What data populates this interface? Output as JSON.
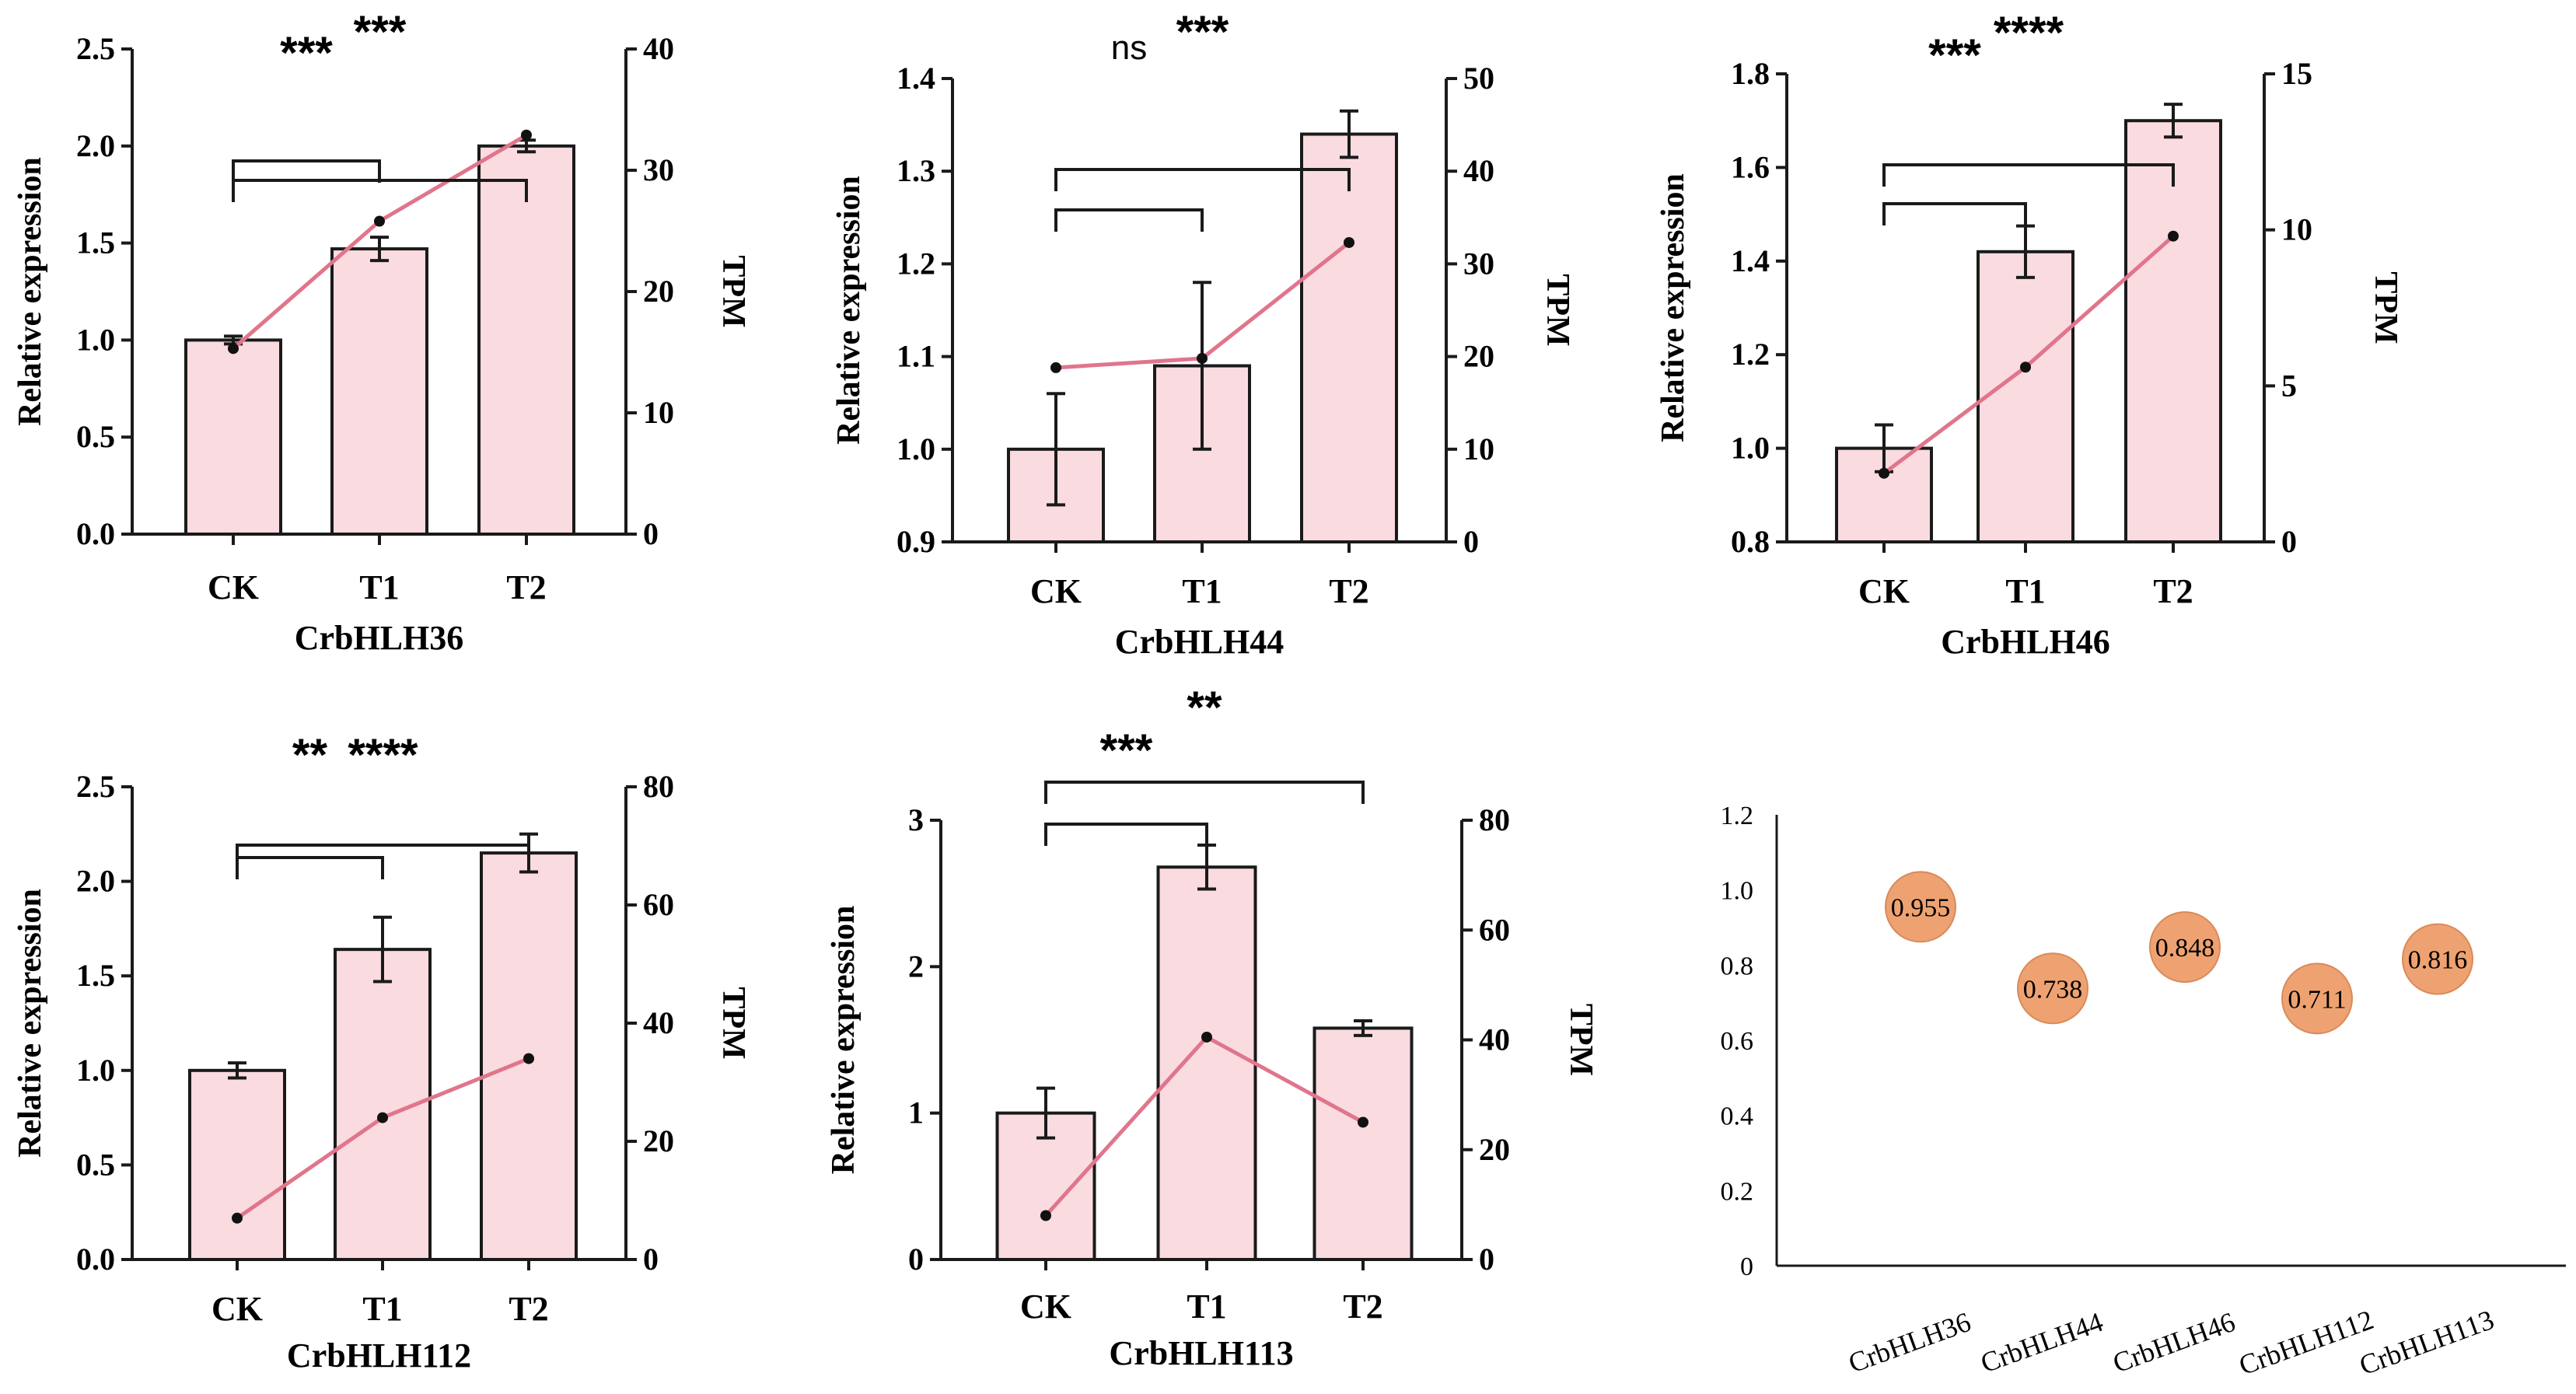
{
  "colors": {
    "bar_fill": "#f9dbe0",
    "bar_stroke": "#1a1a1a",
    "line": "#e0758c",
    "bubble": "#efa271",
    "bubble_stroke": "#d98a5a",
    "axis": "#1a1a1a"
  },
  "chart_data": [
    {
      "type": "bar+line",
      "title": "CrbHLH36",
      "categories": [
        "CK",
        "T1",
        "T2"
      ],
      "ylabel": "Relative expression",
      "y2label": "TPM",
      "ylim": [
        0,
        2.5
      ],
      "yticks": [
        0.0,
        0.5,
        1.0,
        1.5,
        2.0,
        2.5
      ],
      "ytick_labels": [
        "0.0",
        "0.5",
        "1.0",
        "1.5",
        "2.0",
        "2.5"
      ],
      "y2lim": [
        0,
        40
      ],
      "y2ticks": [
        0,
        10,
        20,
        30,
        40
      ],
      "y2tick_labels": [
        "0",
        "10",
        "20",
        "30",
        "40"
      ],
      "bars": [
        1.0,
        1.47,
        2.0
      ],
      "errors": [
        0.02,
        0.06,
        0.03
      ],
      "tpm": [
        15.3,
        25.8,
        32.9
      ],
      "significance": [
        {
          "from": 0,
          "to": 1,
          "label": "***"
        },
        {
          "from": 0,
          "to": 2,
          "label": "***"
        }
      ]
    },
    {
      "type": "bar+line",
      "title": "CrbHLH44",
      "categories": [
        "CK",
        "T1",
        "T2"
      ],
      "ylabel": "Relative expression",
      "y2label": "TPM",
      "ylim": [
        0.9,
        1.4
      ],
      "yticks": [
        0.9,
        1.0,
        1.1,
        1.2,
        1.3,
        1.4
      ],
      "ytick_labels": [
        "0.9",
        "1.0",
        "1.1",
        "1.2",
        "1.3",
        "1.4"
      ],
      "y2lim": [
        0,
        50
      ],
      "y2ticks": [
        0,
        10,
        20,
        30,
        40,
        50
      ],
      "y2tick_labels": [
        "0",
        "10",
        "20",
        "30",
        "40",
        "50"
      ],
      "bars": [
        1.0,
        1.09,
        1.34
      ],
      "errors": [
        0.06,
        0.09,
        0.025
      ],
      "tpm": [
        18.8,
        19.8,
        32.3
      ],
      "significance": [
        {
          "from": 0,
          "to": 1,
          "label": "ns"
        },
        {
          "from": 0,
          "to": 2,
          "label": "***"
        }
      ]
    },
    {
      "type": "bar+line",
      "title": "CrbHLH46",
      "categories": [
        "CK",
        "T1",
        "T2"
      ],
      "ylabel": "Relative expression",
      "y2label": "TPM",
      "ylim": [
        0.8,
        1.8
      ],
      "yticks": [
        0.8,
        1.0,
        1.2,
        1.4,
        1.6,
        1.8
      ],
      "ytick_labels": [
        "0.8",
        "1.0",
        "1.2",
        "1.4",
        "1.6",
        "1.8"
      ],
      "y2lim": [
        0,
        15
      ],
      "y2ticks": [
        0,
        5,
        10,
        15
      ],
      "y2tick_labels": [
        "0",
        "5",
        "10",
        "15"
      ],
      "bars": [
        1.0,
        1.42,
        1.7
      ],
      "errors": [
        0.05,
        0.055,
        0.035
      ],
      "tpm": [
        2.2,
        5.6,
        9.8
      ],
      "significance": [
        {
          "from": 0,
          "to": 1,
          "label": "***"
        },
        {
          "from": 0,
          "to": 2,
          "label": "****"
        }
      ]
    },
    {
      "type": "bar+line",
      "title": "CrbHLH112",
      "categories": [
        "CK",
        "T1",
        "T2"
      ],
      "ylabel": "Relative expression",
      "y2label": "TPM",
      "ylim": [
        0,
        2.5
      ],
      "yticks": [
        0.0,
        0.5,
        1.0,
        1.5,
        2.0,
        2.5
      ],
      "ytick_labels": [
        "0.0",
        "0.5",
        "1.0",
        "1.5",
        "2.0",
        "2.5"
      ],
      "y2lim": [
        0,
        80
      ],
      "y2ticks": [
        0,
        20,
        40,
        60,
        80
      ],
      "y2tick_labels": [
        "0",
        "20",
        "40",
        "60",
        "80"
      ],
      "bars": [
        1.0,
        1.64,
        2.15
      ],
      "errors": [
        0.04,
        0.17,
        0.1
      ],
      "tpm": [
        7,
        24,
        34
      ],
      "significance": [
        {
          "from": 0,
          "to": 1,
          "label": "**"
        },
        {
          "from": 0,
          "to": 2,
          "label": "****"
        }
      ]
    },
    {
      "type": "bar+line",
      "title": "CrbHLH113",
      "categories": [
        "CK",
        "T1",
        "T2"
      ],
      "ylabel": "Relative expression",
      "y2label": "TPM",
      "ylim": [
        0,
        3
      ],
      "yticks": [
        0,
        1,
        2,
        3
      ],
      "ytick_labels": [
        "0",
        "1",
        "2",
        "3"
      ],
      "y2lim": [
        0,
        80
      ],
      "y2ticks": [
        0,
        20,
        40,
        60,
        80
      ],
      "y2tick_labels": [
        "0",
        "20",
        "40",
        "60",
        "80"
      ],
      "bars": [
        1.0,
        2.68,
        1.58
      ],
      "errors": [
        0.17,
        0.15,
        0.05
      ],
      "tpm": [
        8,
        40.5,
        25
      ],
      "significance": [
        {
          "from": 0,
          "to": 1,
          "label": "***"
        },
        {
          "from": 0,
          "to": 2,
          "label": "**"
        }
      ]
    },
    {
      "type": "scatter",
      "title": "",
      "categories": [
        "CrbHLH36",
        "CrbHLH44",
        "CrbHLH46",
        "CrbHLH112",
        "CrbHLH113"
      ],
      "values": [
        0.955,
        0.738,
        0.848,
        0.711,
        0.816
      ],
      "value_labels": [
        "0.955",
        "0.738",
        "0.848",
        "0.711",
        "0.816"
      ],
      "ylim": [
        0,
        1.2
      ],
      "yticks": [
        0,
        0.2,
        0.4,
        0.6,
        0.8,
        1.0,
        1.2
      ],
      "ytick_labels": [
        "0",
        "0.2",
        "0.4",
        "0.6",
        "0.8",
        "1.0",
        "1.2"
      ]
    }
  ]
}
